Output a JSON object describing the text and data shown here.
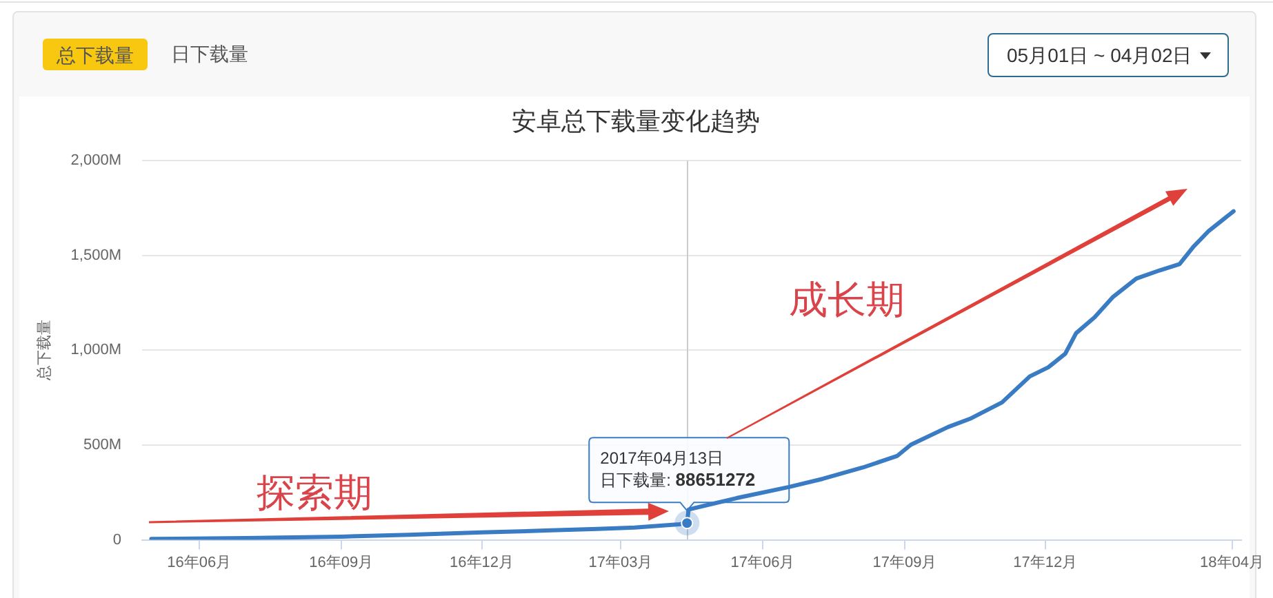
{
  "chart_data": {
    "type": "line",
    "title": "安卓总下载量变化趋势",
    "ylabel": "总下载量",
    "x": [
      "2016-05-01",
      "2016-07-01",
      "2016-09-01",
      "2016-10-15",
      "2016-12-01",
      "2017-01-15",
      "2017-02-14",
      "2017-03-10",
      "2017-04-08",
      "2017-04-13",
      "2017-04-14",
      "2017-05-15",
      "2017-06-18",
      "2017-07-10",
      "2017-08-05",
      "2017-08-27",
      "2017-09-05",
      "2017-09-29",
      "2017-10-14",
      "2017-11-03",
      "2017-11-21",
      "2017-12-03",
      "2017-12-14",
      "2017-12-21",
      "2018-01-02",
      "2018-01-14",
      "2018-01-29",
      "2018-02-13",
      "2018-02-26",
      "2018-03-07",
      "2018-03-17",
      "2018-04-02"
    ],
    "values": [
      5000000,
      9000000,
      17000000,
      27000000,
      39000000,
      50000000,
      58000000,
      65000000,
      82000000,
      88651272,
      160000000,
      220000000,
      279000000,
      322000000,
      382000000,
      442000000,
      502000000,
      595000000,
      641000000,
      725000000,
      862000000,
      910000000,
      982000000,
      1090000000,
      1174000000,
      1282000000,
      1378000000,
      1421000000,
      1454000000,
      1546000000,
      1630000000,
      1733000000
    ],
    "color": "#3a7cc4",
    "xlim": [
      "2016-04-25",
      "2018-04-07"
    ],
    "xticks": [
      {
        "value": "2016-06-01",
        "label": "16年06月"
      },
      {
        "value": "2016-09-01",
        "label": "16年09月"
      },
      {
        "value": "2016-12-01",
        "label": "16年12月"
      },
      {
        "value": "2017-03-01",
        "label": "17年03月"
      },
      {
        "value": "2017-06-01",
        "label": "17年06月"
      },
      {
        "value": "2017-09-01",
        "label": "17年09月"
      },
      {
        "value": "2017-12-01",
        "label": "17年12月"
      },
      {
        "value": "2018-04-01",
        "label": "18年04月"
      }
    ],
    "ylim": [
      0,
      2000000000
    ],
    "yticks": [
      0,
      {
        "value": 500000000,
        "label": "500M"
      },
      {
        "value": 1000000000,
        "label": "1,000M"
      },
      {
        "value": 1500000000,
        "label": "1,500M"
      },
      {
        "value": 2000000000,
        "label": "2,000M"
      }
    ],
    "grid": "y",
    "ref_lines": [
      {
        "axis": "x",
        "value": "2017-04-13",
        "color": "#cccccc"
      }
    ],
    "annotations": [
      "总下载量",
      "日下载量",
      "05月01日 ~ 04月02日",
      "探索期",
      "成长期",
      "2017年04月13日",
      {
        "text": "日下载量: 88651272",
        "x": "2017-04-13",
        "y": 88651272
      }
    ]
  }
}
